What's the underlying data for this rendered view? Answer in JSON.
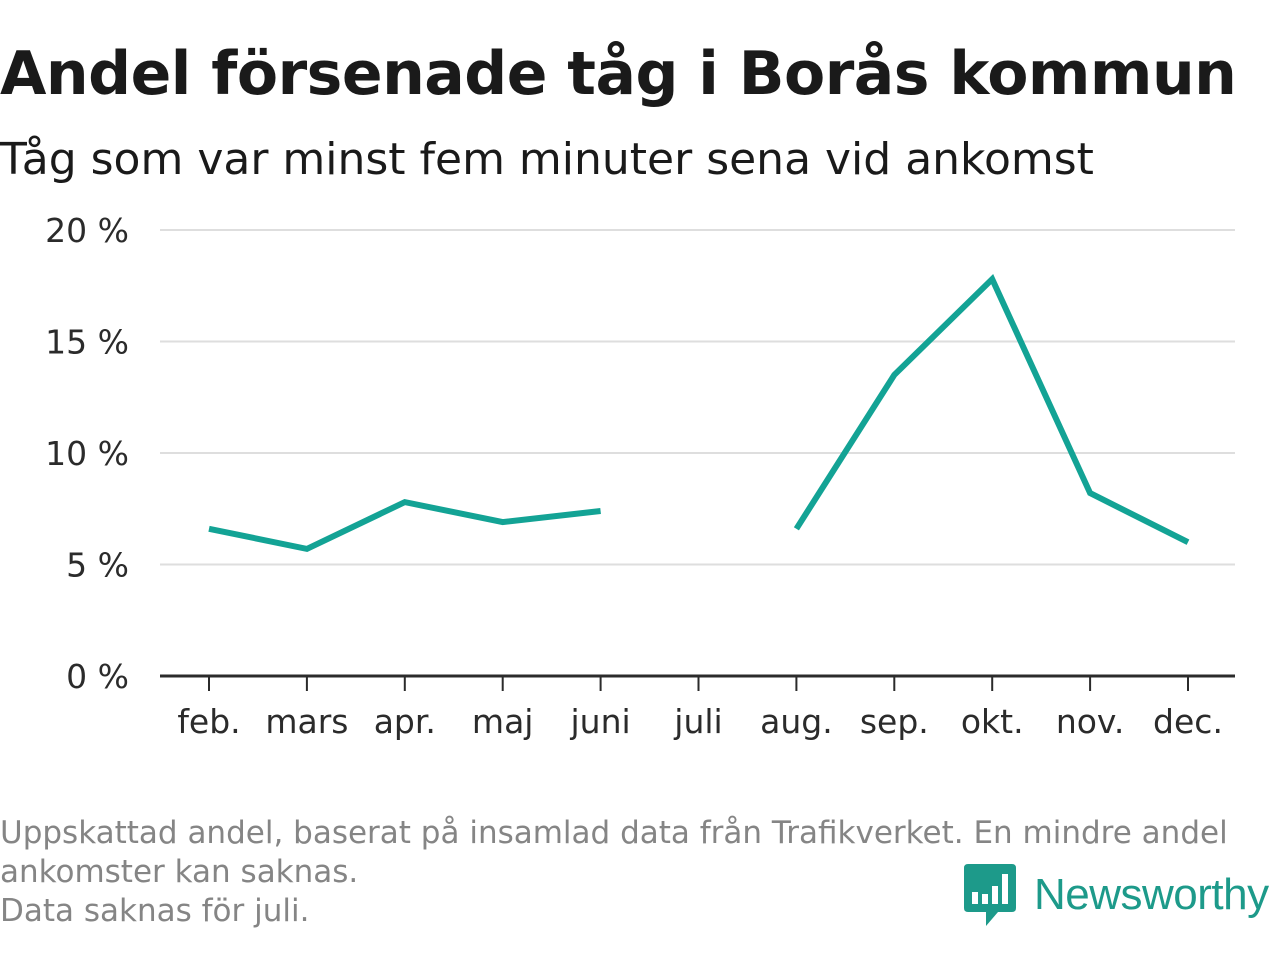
{
  "title": "Andel försenade tåg i Borås kommun",
  "subtitle": "Tåg som var minst fem minuter sena vid ankomst",
  "footnote": {
    "line1": "Uppskattad andel, baserat på insamlad data från Trafikverket. En mindre andel",
    "line2": "ankomster kan saknas.",
    "line3": "Data saknas för juli."
  },
  "brand": {
    "name": "Newsworthy",
    "icon": "newsworthy-chat-bars-icon",
    "color": "#1d9a8a"
  },
  "chart_data": {
    "type": "line",
    "categories": [
      "feb.",
      "mars",
      "apr.",
      "maj",
      "juni",
      "juli",
      "aug.",
      "sep.",
      "okt.",
      "nov.",
      "dec."
    ],
    "series": [
      {
        "values": [
          6.6,
          5.7,
          7.8,
          6.9,
          7.4,
          null,
          6.6,
          13.5,
          17.8,
          8.2,
          6.0
        ],
        "color": "#13a395"
      }
    ],
    "ylim": [
      0,
      20
    ],
    "yticks": [
      0,
      5,
      10,
      15,
      20
    ],
    "ytick_labels": [
      "0 %",
      "5 %",
      "10 %",
      "15 %",
      "20 %"
    ],
    "xlabel": "",
    "ylabel": "",
    "grid": true,
    "legend": "none",
    "colors": {
      "grid": "#dedede",
      "axis": "#2b2b2b",
      "ticks": "#2b2b2b"
    }
  }
}
